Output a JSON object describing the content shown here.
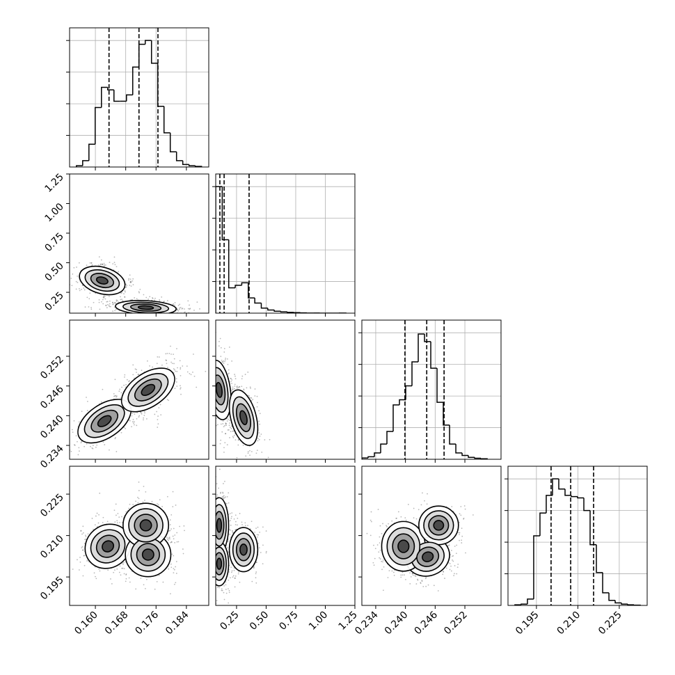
{
  "chart_data": {
    "type": "corner",
    "hist_ylim": [
      0,
      1.1
    ],
    "hist_yticks": [
      0.25,
      0.5,
      0.75,
      1.0
    ],
    "params": [
      {
        "xlim": [
          0.1532,
          0.1899
        ],
        "xticks": [
          {
            "value": 0.16,
            "label": "0.160"
          },
          0.168,
          0.176,
          0.184
        ],
        "bins": [
          0.155,
          0.15665,
          0.1583,
          0.15995,
          0.1616,
          0.16325,
          0.1649,
          0.16655,
          0.1682,
          0.16985,
          0.1715,
          0.17315,
          0.1748,
          0.17645,
          0.1781,
          0.17975,
          0.1814,
          0.18305,
          0.1847,
          0.18635,
          0.188
        ],
        "counts": [
          0.01,
          0.05,
          0.18,
          0.47,
          0.63,
          0.61,
          0.52,
          0.52,
          0.57,
          0.79,
          0.97,
          1.0,
          0.82,
          0.48,
          0.27,
          0.12,
          0.05,
          0.02,
          0.01,
          0.005
        ],
        "quantiles": [
          0.1636,
          0.1715,
          0.1765
        ]
      },
      {
        "xlim": [
          0.074,
          1.25
        ],
        "xticks": [
          0.25,
          {
            "value": 0.5,
            "label": "0.50"
          },
          0.75,
          {
            "value": 1.0,
            "label": "1.00"
          },
          1.25
        ],
        "bins": [
          0.074,
          0.129,
          0.184,
          0.239,
          0.294,
          0.349,
          0.404,
          0.459,
          0.514,
          0.569,
          0.624,
          0.679,
          0.734,
          0.789,
          0.844,
          0.899,
          0.954,
          1.009,
          1.064,
          1.119,
          1.174
        ],
        "counts": [
          1.0,
          0.58,
          0.2,
          0.22,
          0.24,
          0.12,
          0.08,
          0.04,
          0.025,
          0.015,
          0.01,
          0.006,
          0.004,
          0.002,
          0.001,
          0.001,
          0,
          0,
          0,
          0.001
        ],
        "quantiles": [
          0.109,
          0.145,
          0.356
        ]
      },
      {
        "xlim": [
          0.2312,
          0.2593
        ],
        "xticks": [
          0.234,
          {
            "value": 0.24,
            "label": "0.240"
          },
          0.246,
          0.252
        ],
        "bins": [
          0.2312,
          0.232465,
          0.23373,
          0.234995,
          0.23626,
          0.237525,
          0.23879,
          0.240055,
          0.24132,
          0.242585,
          0.24385,
          0.245115,
          0.24638,
          0.247645,
          0.24891,
          0.250175,
          0.25144,
          0.252705,
          0.25397,
          0.255235,
          0.2565
        ],
        "counts": [
          0.01,
          0.02,
          0.05,
          0.12,
          0.22,
          0.43,
          0.47,
          0.58,
          0.77,
          0.99,
          0.93,
          0.72,
          0.45,
          0.27,
          0.12,
          0.05,
          0.03,
          0.015,
          0.008,
          0.004
        ],
        "quantiles": [
          0.2399,
          0.2443,
          0.2478
        ]
      },
      {
        "xlim": [
          0.1847,
          0.2351
        ],
        "xticks": [
          0.195,
          {
            "value": 0.21,
            "label": "0.210"
          },
          0.225
        ],
        "bins": [
          0.1872,
          0.18947,
          0.19174,
          0.19401,
          0.19628,
          0.19855,
          0.20082,
          0.20309,
          0.20536,
          0.20763,
          0.2099,
          0.21217,
          0.21444,
          0.21671,
          0.21898,
          0.22125,
          0.22352,
          0.22579,
          0.22806,
          0.23033,
          0.2326
        ],
        "counts": [
          0.005,
          0.01,
          0.05,
          0.55,
          0.73,
          0.87,
          1.0,
          0.92,
          0.87,
          0.86,
          0.85,
          0.75,
          0.48,
          0.26,
          0.1,
          0.04,
          0.02,
          0.01,
          0.005,
          0.002
        ],
        "quantiles": [
          0.2003,
          0.2074,
          0.2157
        ]
      }
    ],
    "pairs": [
      {
        "x_param": 0,
        "y_param": 1,
        "components": [
          {
            "x": 0.1618,
            "y": 0.35,
            "sx": 0.003,
            "sy": 0.06,
            "rho": -0.3,
            "w": 0.4
          },
          {
            "x": 0.1733,
            "y": 0.121,
            "sx": 0.004,
            "sy": 0.03,
            "rho": -0.2,
            "w": 0.6
          }
        ]
      },
      {
        "x_param": 0,
        "y_param": 2,
        "components": [
          {
            "x": 0.1624,
            "y": 0.2389,
            "sx": 0.0035,
            "sy": 0.0022,
            "rho": 0.5,
            "w": 0.4
          },
          {
            "x": 0.1739,
            "y": 0.2452,
            "sx": 0.0035,
            "sy": 0.0022,
            "rho": 0.5,
            "w": 0.6
          }
        ]
      },
      {
        "x_param": 1,
        "y_param": 2,
        "components": [
          {
            "x": 0.103,
            "y": 0.2452,
            "sx": 0.05,
            "sy": 0.003,
            "rho": -0.3,
            "w": 0.6
          },
          {
            "x": 0.309,
            "y": 0.2396,
            "sx": 0.06,
            "sy": 0.0028,
            "rho": -0.4,
            "w": 0.4
          }
        ]
      },
      {
        "x_param": 0,
        "y_param": 3,
        "components": [
          {
            "x": 0.1633,
            "y": 0.2061,
            "sx": 0.003,
            "sy": 0.004,
            "rho": 0.1,
            "w": 0.35
          },
          {
            "x": 0.1739,
            "y": 0.2031,
            "sx": 0.003,
            "sy": 0.004,
            "rho": 0.0,
            "w": 0.35
          },
          {
            "x": 0.1733,
            "y": 0.2137,
            "sx": 0.003,
            "sy": 0.004,
            "rho": 0.0,
            "w": 0.3
          }
        ]
      },
      {
        "x_param": 1,
        "y_param": 3,
        "components": [
          {
            "x": 0.103,
            "y": 0.2137,
            "sx": 0.04,
            "sy": 0.005,
            "rho": 0.0,
            "w": 0.4
          },
          {
            "x": 0.309,
            "y": 0.2049,
            "sx": 0.06,
            "sy": 0.004,
            "rho": 0.0,
            "w": 0.3
          },
          {
            "x": 0.103,
            "y": 0.1998,
            "sx": 0.04,
            "sy": 0.004,
            "rho": 0.0,
            "w": 0.3
          }
        ]
      },
      {
        "x_param": 2,
        "y_param": 3,
        "components": [
          {
            "x": 0.2445,
            "y": 0.2023,
            "sx": 0.0022,
            "sy": 0.0035,
            "rho": 0.1,
            "w": 0.4
          },
          {
            "x": 0.2396,
            "y": 0.2061,
            "sx": 0.0022,
            "sy": 0.0045,
            "rho": 0.0,
            "w": 0.35
          },
          {
            "x": 0.2467,
            "y": 0.2137,
            "sx": 0.002,
            "sy": 0.0035,
            "rho": 0.0,
            "w": 0.25
          }
        ]
      }
    ]
  }
}
